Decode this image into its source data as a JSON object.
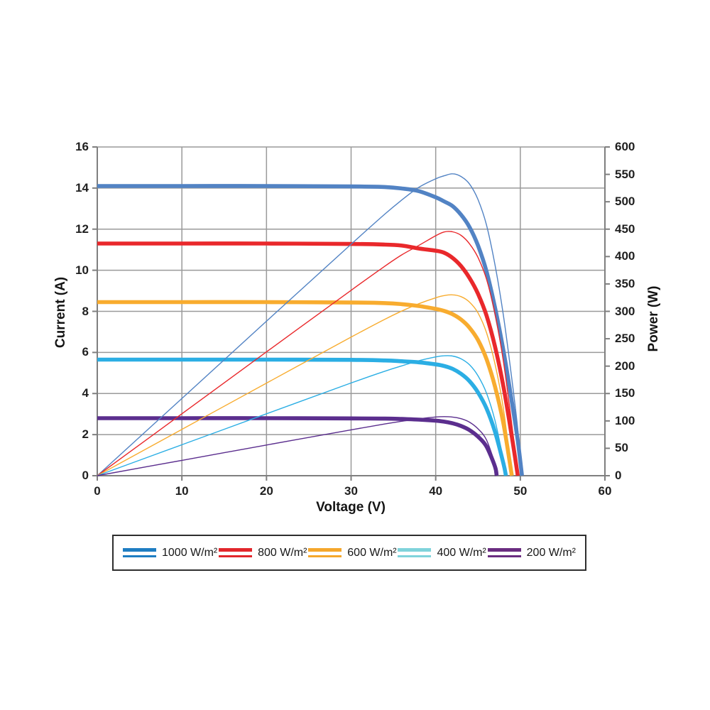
{
  "chart_data": {
    "type": "line",
    "title": "",
    "xlabel": "Voltage (V)",
    "ylabel_left": "Current (A)",
    "ylabel_right": "Power (W)",
    "grid": true,
    "legend_position": "bottom",
    "x_axis": {
      "min": 0,
      "max": 60,
      "tick_step": 10,
      "ticks": [
        0,
        10,
        20,
        30,
        40,
        50,
        60
      ]
    },
    "y_axis_left": {
      "min": 0,
      "max": 16,
      "tick_step": 2,
      "ticks": [
        0,
        2,
        4,
        6,
        8,
        10,
        12,
        14,
        16
      ]
    },
    "y_axis_right": {
      "min": 0,
      "max": 600,
      "tick_step": 50,
      "ticks": [
        0,
        50,
        100,
        150,
        200,
        250,
        300,
        350,
        400,
        450,
        500,
        550,
        600
      ]
    },
    "curve_styles": {
      "thick": "I-V curve, read on left axis (A)",
      "thin": "P-V curve, P = V x I, read on right axis (W)"
    },
    "series": [
      {
        "id": "1000",
        "name": "1000 W/m²",
        "color": "#5283C4",
        "legend_color": "#1E7DC2",
        "isc_a": 14.1,
        "voc_v": 50.2,
        "vmp_v": 42,
        "pv_peak_w": 555,
        "iv_points": [
          [
            0,
            14.1
          ],
          [
            10,
            14.1
          ],
          [
            20,
            14.1
          ],
          [
            30,
            14.08
          ],
          [
            34,
            14.05
          ],
          [
            36,
            13.98
          ],
          [
            38,
            13.85
          ],
          [
            40,
            13.55
          ],
          [
            41,
            13.35
          ],
          [
            42,
            13.12
          ],
          [
            43,
            12.7
          ],
          [
            44,
            12.1
          ],
          [
            45,
            11.2
          ],
          [
            46,
            9.95
          ],
          [
            47,
            8.2
          ],
          [
            48,
            6.1
          ],
          [
            49,
            3.6
          ],
          [
            49.7,
            1.7
          ],
          [
            50.2,
            0
          ]
        ]
      },
      {
        "id": "800",
        "name": "800 W/m²",
        "color": "#E9282B",
        "legend_color": "#E2262B",
        "isc_a": 11.3,
        "voc_v": 49.7,
        "vmp_v": 41.5,
        "pv_peak_w": 447,
        "iv_points": [
          [
            0,
            11.3
          ],
          [
            10,
            11.3
          ],
          [
            20,
            11.3
          ],
          [
            30,
            11.28
          ],
          [
            34,
            11.25
          ],
          [
            36,
            11.2
          ],
          [
            38,
            11.06
          ],
          [
            40,
            10.95
          ],
          [
            41,
            10.85
          ],
          [
            42,
            10.6
          ],
          [
            43,
            10.2
          ],
          [
            44,
            9.62
          ],
          [
            45,
            8.85
          ],
          [
            46,
            7.8
          ],
          [
            47,
            6.3
          ],
          [
            48,
            4.35
          ],
          [
            49,
            1.9
          ],
          [
            49.7,
            0
          ]
        ]
      },
      {
        "id": "600",
        "name": "600 W/m²",
        "color": "#F8AC2F",
        "legend_color": "#F5A72B",
        "isc_a": 8.45,
        "voc_v": 49.0,
        "vmp_v": 41.5,
        "pv_peak_w": 335,
        "iv_points": [
          [
            0,
            8.45
          ],
          [
            10,
            8.45
          ],
          [
            20,
            8.45
          ],
          [
            30,
            8.43
          ],
          [
            34,
            8.4
          ],
          [
            36,
            8.35
          ],
          [
            38,
            8.26
          ],
          [
            40,
            8.12
          ],
          [
            41,
            8.02
          ],
          [
            42,
            7.86
          ],
          [
            43,
            7.6
          ],
          [
            44,
            7.2
          ],
          [
            45,
            6.6
          ],
          [
            46,
            5.68
          ],
          [
            47,
            4.35
          ],
          [
            48,
            2.55
          ],
          [
            49,
            0
          ]
        ]
      },
      {
        "id": "400",
        "name": "400 W/m²",
        "color": "#2BAEE4",
        "legend_color": "#7FD3DB",
        "isc_a": 5.65,
        "voc_v": 48.3,
        "vmp_v": 41,
        "pv_peak_w": 222,
        "iv_points": [
          [
            0,
            5.65
          ],
          [
            10,
            5.65
          ],
          [
            20,
            5.65
          ],
          [
            30,
            5.64
          ],
          [
            34,
            5.61
          ],
          [
            36,
            5.57
          ],
          [
            38,
            5.52
          ],
          [
            40,
            5.42
          ],
          [
            41,
            5.34
          ],
          [
            42,
            5.2
          ],
          [
            43,
            4.96
          ],
          [
            44,
            4.6
          ],
          [
            45,
            4.05
          ],
          [
            46,
            3.28
          ],
          [
            47,
            2.15
          ],
          [
            48,
            0.6
          ],
          [
            48.3,
            0
          ]
        ]
      },
      {
        "id": "200",
        "name": "200 W/m²",
        "color": "#5B2E8E",
        "legend_color": "#6A2C80",
        "isc_a": 2.8,
        "voc_v": 47.2,
        "vmp_v": 40.5,
        "pv_peak_w": 108,
        "iv_points": [
          [
            0,
            2.8
          ],
          [
            10,
            2.8
          ],
          [
            20,
            2.8
          ],
          [
            30,
            2.79
          ],
          [
            34,
            2.78
          ],
          [
            36,
            2.76
          ],
          [
            38,
            2.73
          ],
          [
            40,
            2.68
          ],
          [
            41,
            2.63
          ],
          [
            42,
            2.55
          ],
          [
            43,
            2.42
          ],
          [
            44,
            2.22
          ],
          [
            45,
            1.9
          ],
          [
            46,
            1.42
          ],
          [
            47,
            0.45
          ],
          [
            47.2,
            0
          ]
        ]
      }
    ],
    "colors": {
      "grid": "#9a9a9a",
      "axis": "#7f7f7f",
      "text": "#1f1f1f",
      "legend_border": "#2e2e2e"
    }
  }
}
